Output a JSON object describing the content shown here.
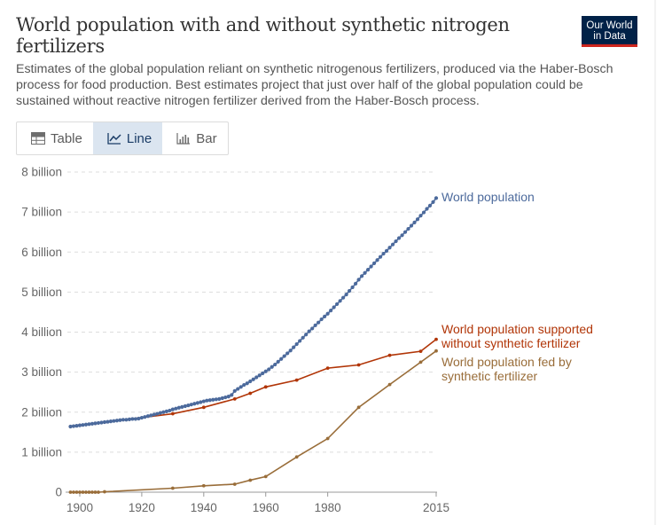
{
  "header": {
    "title": "World population with and without synthetic nitrogen fertilizers",
    "subtitle": "Estimates of the global population reliant on synthetic nitrogenous fertilizers, produced via the Haber-Bosch process for food production. Best estimates project that just over half of the global population could be sustained without reactive nitrogen fertilizer derived from the Haber-Bosch process.",
    "logo_line1": "Our World",
    "logo_line2": "in Data"
  },
  "tabs": [
    {
      "label": "Table",
      "active": false
    },
    {
      "label": "Line",
      "active": true
    },
    {
      "label": "Bar",
      "active": false
    }
  ],
  "colors": {
    "world": "#4c6a9c",
    "without": "#b13507",
    "fed": "#996d39"
  },
  "chart_data": {
    "type": "line",
    "title": "World population with and without synthetic nitrogen fertilizers",
    "xlabel": "",
    "ylabel": "",
    "xlim": [
      1900,
      2015
    ],
    "ylim": [
      0,
      8000000000
    ],
    "x_ticks": [
      {
        "value": 1900,
        "label": "1900"
      },
      {
        "value": 1920,
        "label": "1920"
      },
      {
        "value": 1940,
        "label": "1940"
      },
      {
        "value": 1960,
        "label": "1960"
      },
      {
        "value": 1980,
        "label": "1980"
      },
      {
        "value": 2015,
        "label": "2015"
      }
    ],
    "y_ticks": [
      {
        "value": 0,
        "label": "0"
      },
      {
        "value": 1000000000,
        "label": "1 billion"
      },
      {
        "value": 2000000000,
        "label": "2 billion"
      },
      {
        "value": 3000000000,
        "label": "3 billion"
      },
      {
        "value": 4000000000,
        "label": "4 billion"
      },
      {
        "value": 5000000000,
        "label": "5 billion"
      },
      {
        "value": 6000000000,
        "label": "6 billion"
      },
      {
        "value": 7000000000,
        "label": "7 billion"
      },
      {
        "value": 8000000000,
        "label": "8 billion"
      }
    ],
    "grid": true,
    "series": [
      {
        "name": "World population",
        "key": "world",
        "label_lines": [
          "World population"
        ],
        "points": [
          [
            1897,
            1.64
          ],
          [
            1898,
            1.65
          ],
          [
            1899,
            1.66
          ],
          [
            1900,
            1.67
          ],
          [
            1901,
            1.68
          ],
          [
            1902,
            1.69
          ],
          [
            1903,
            1.7
          ],
          [
            1904,
            1.71
          ],
          [
            1905,
            1.72
          ],
          [
            1906,
            1.73
          ],
          [
            1907,
            1.74
          ],
          [
            1908,
            1.75
          ],
          [
            1909,
            1.76
          ],
          [
            1910,
            1.77
          ],
          [
            1911,
            1.78
          ],
          [
            1912,
            1.79
          ],
          [
            1913,
            1.8
          ],
          [
            1914,
            1.81
          ],
          [
            1915,
            1.81
          ],
          [
            1916,
            1.82
          ],
          [
            1917,
            1.83
          ],
          [
            1918,
            1.83
          ],
          [
            1919,
            1.84
          ],
          [
            1920,
            1.86
          ],
          [
            1921,
            1.88
          ],
          [
            1922,
            1.9
          ],
          [
            1923,
            1.92
          ],
          [
            1924,
            1.94
          ],
          [
            1925,
            1.96
          ],
          [
            1926,
            1.98
          ],
          [
            1927,
            2.0
          ],
          [
            1928,
            2.02
          ],
          [
            1929,
            2.04
          ],
          [
            1930,
            2.07
          ],
          [
            1931,
            2.09
          ],
          [
            1932,
            2.11
          ],
          [
            1933,
            2.13
          ],
          [
            1934,
            2.15
          ],
          [
            1935,
            2.17
          ],
          [
            1936,
            2.19
          ],
          [
            1937,
            2.21
          ],
          [
            1938,
            2.23
          ],
          [
            1939,
            2.25
          ],
          [
            1940,
            2.27
          ],
          [
            1941,
            2.29
          ],
          [
            1942,
            2.3
          ],
          [
            1943,
            2.31
          ],
          [
            1944,
            2.32
          ],
          [
            1945,
            2.33
          ],
          [
            1946,
            2.35
          ],
          [
            1947,
            2.37
          ],
          [
            1948,
            2.39
          ],
          [
            1949,
            2.43
          ],
          [
            1950,
            2.53
          ],
          [
            1951,
            2.58
          ],
          [
            1952,
            2.63
          ],
          [
            1953,
            2.68
          ],
          [
            1954,
            2.72
          ],
          [
            1955,
            2.77
          ],
          [
            1956,
            2.82
          ],
          [
            1957,
            2.87
          ],
          [
            1958,
            2.92
          ],
          [
            1959,
            2.97
          ],
          [
            1960,
            3.02
          ],
          [
            1961,
            3.07
          ],
          [
            1962,
            3.13
          ],
          [
            1963,
            3.19
          ],
          [
            1964,
            3.26
          ],
          [
            1965,
            3.33
          ],
          [
            1966,
            3.4
          ],
          [
            1967,
            3.47
          ],
          [
            1968,
            3.54
          ],
          [
            1969,
            3.62
          ],
          [
            1970,
            3.7
          ],
          [
            1971,
            3.78
          ],
          [
            1972,
            3.86
          ],
          [
            1973,
            3.94
          ],
          [
            1974,
            4.02
          ],
          [
            1975,
            4.09
          ],
          [
            1976,
            4.17
          ],
          [
            1977,
            4.24
          ],
          [
            1978,
            4.32
          ],
          [
            1979,
            4.39
          ],
          [
            1980,
            4.46
          ],
          [
            1981,
            4.54
          ],
          [
            1982,
            4.62
          ],
          [
            1983,
            4.7
          ],
          [
            1984,
            4.78
          ],
          [
            1985,
            4.86
          ],
          [
            1986,
            4.94
          ],
          [
            1987,
            5.03
          ],
          [
            1988,
            5.12
          ],
          [
            1989,
            5.21
          ],
          [
            1990,
            5.31
          ],
          [
            1991,
            5.4
          ],
          [
            1992,
            5.48
          ],
          [
            1993,
            5.56
          ],
          [
            1994,
            5.64
          ],
          [
            1995,
            5.72
          ],
          [
            1996,
            5.8
          ],
          [
            1997,
            5.88
          ],
          [
            1998,
            5.96
          ],
          [
            1999,
            6.03
          ],
          [
            2000,
            6.11
          ],
          [
            2001,
            6.19
          ],
          [
            2002,
            6.27
          ],
          [
            2003,
            6.35
          ],
          [
            2004,
            6.42
          ],
          [
            2005,
            6.5
          ],
          [
            2006,
            6.58
          ],
          [
            2007,
            6.66
          ],
          [
            2008,
            6.74
          ],
          [
            2009,
            6.82
          ],
          [
            2010,
            6.91
          ],
          [
            2011,
            6.99
          ],
          [
            2012,
            7.08
          ],
          [
            2013,
            7.16
          ],
          [
            2014,
            7.25
          ],
          [
            2015,
            7.35
          ]
        ]
      },
      {
        "name": "World population supported without synthetic fertilizer",
        "key": "without",
        "label_lines": [
          "World population supported",
          "without synthetic fertilizer"
        ],
        "points": [
          [
            1897,
            1.64
          ],
          [
            1900,
            1.67
          ],
          [
            1905,
            1.72
          ],
          [
            1908,
            1.75
          ],
          [
            1930,
            1.96
          ],
          [
            1940,
            2.12
          ],
          [
            1950,
            2.33
          ],
          [
            1955,
            2.47
          ],
          [
            1960,
            2.63
          ],
          [
            1970,
            2.8
          ],
          [
            1980,
            3.1
          ],
          [
            1990,
            3.18
          ],
          [
            2000,
            3.42
          ],
          [
            2010,
            3.52
          ],
          [
            2015,
            3.82
          ]
        ]
      },
      {
        "name": "World population fed by synthetic fertilizer",
        "key": "fed",
        "label_lines": [
          "World population fed by",
          "synthetic fertilizer"
        ],
        "points": [
          [
            1897,
            0.0
          ],
          [
            1898,
            0.0
          ],
          [
            1899,
            0.0
          ],
          [
            1900,
            0.0
          ],
          [
            1901,
            0.0
          ],
          [
            1902,
            0.0
          ],
          [
            1903,
            0.0
          ],
          [
            1904,
            0.0
          ],
          [
            1905,
            0.0
          ],
          [
            1906,
            0.0
          ],
          [
            1908,
            0.01
          ],
          [
            1930,
            0.1
          ],
          [
            1940,
            0.16
          ],
          [
            1950,
            0.2
          ],
          [
            1955,
            0.3
          ],
          [
            1960,
            0.39
          ],
          [
            1970,
            0.88
          ],
          [
            1980,
            1.34
          ],
          [
            1990,
            2.12
          ],
          [
            2000,
            2.69
          ],
          [
            2010,
            3.25
          ],
          [
            2015,
            3.53
          ]
        ]
      }
    ],
    "units_note": "point values are in billions"
  }
}
